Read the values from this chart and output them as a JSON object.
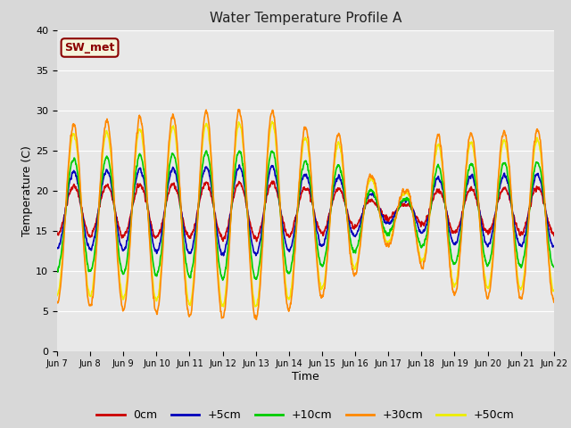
{
  "title": "Water Temperature Profile A",
  "xlabel": "Time",
  "ylabel": "Temperature (C)",
  "ylim": [
    0,
    40
  ],
  "background_color": "#d8d8d8",
  "plot_bg_color": "#e8e8e8",
  "colors": {
    "0cm": "#cc0000",
    "+5cm": "#0000bb",
    "+10cm": "#00cc00",
    "+30cm": "#ff8800",
    "+50cm": "#eeee00"
  },
  "annotation": "SW_met",
  "annotation_color": "#8b0000",
  "annotation_bg": "#f5f5dc",
  "tick_labels": [
    "Jun 7",
    "Jun 8",
    "Jun 9",
    "Jun 10",
    "Jun 11",
    "Jun 12",
    "Jun 13",
    "Jun 14",
    "Jun 15",
    "Jun 16",
    "Jun 17",
    "Jun 18",
    "Jun 19",
    "Jun 20",
    "Jun 21",
    "Jun 22"
  ],
  "linewidth": 1.2,
  "n_days": 15,
  "samples_per_day": 144
}
